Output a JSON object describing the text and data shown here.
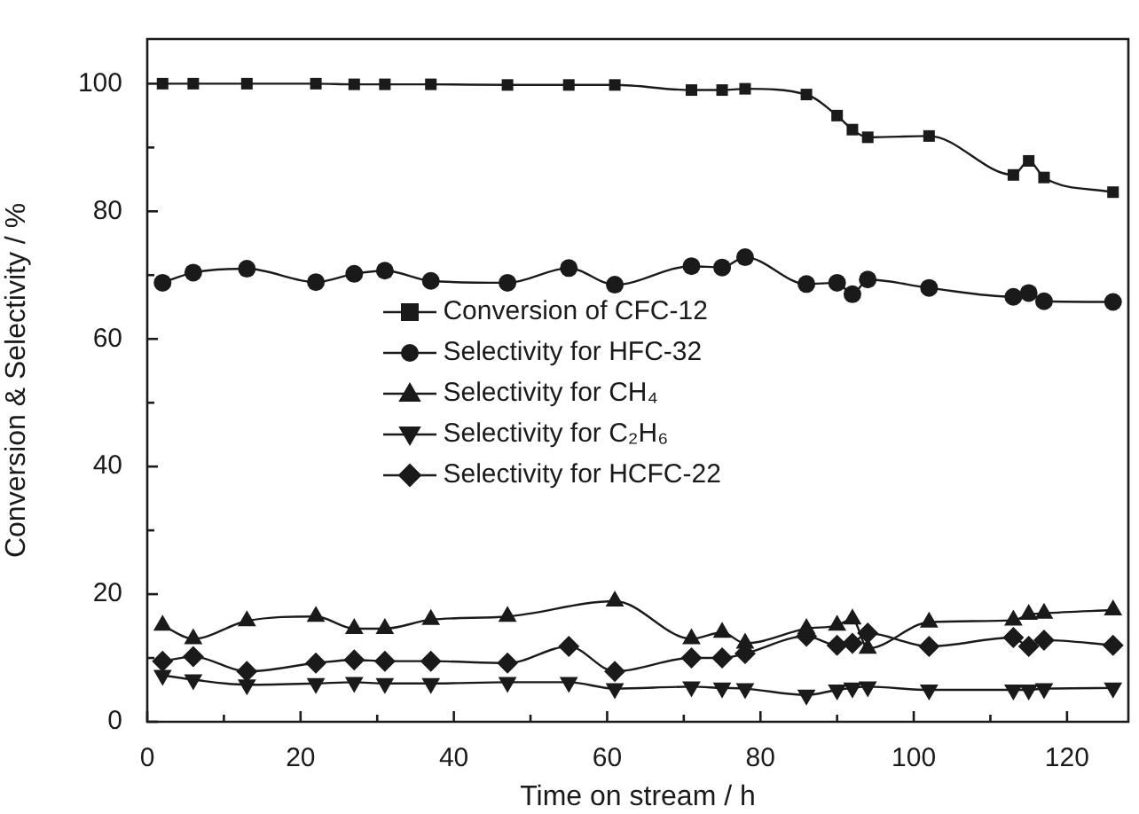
{
  "chart_data": {
    "type": "line",
    "xlabel": "Time on stream / h",
    "ylabel": "Conversion & Selectivity / %",
    "xlim": [
      0,
      128
    ],
    "ylim": [
      0,
      107
    ],
    "xticks": [
      0,
      {
        "value": 10,
        "label": null
      },
      20,
      {
        "value": 30,
        "label": null
      },
      40,
      {
        "value": 50,
        "label": null
      },
      60,
      {
        "value": 70,
        "label": null
      },
      80,
      {
        "value": 90,
        "label": null
      },
      100,
      {
        "value": 110,
        "label": null
      },
      120
    ],
    "yticks": [
      0,
      {
        "value": 10,
        "label": null
      },
      20,
      {
        "value": 30,
        "label": null
      },
      40,
      {
        "value": 50,
        "label": null
      },
      60,
      {
        "value": 70,
        "label": null
      },
      80,
      {
        "value": 90,
        "label": null
      },
      100
    ],
    "grid": false,
    "legend": "center",
    "line_style": "solid",
    "series": [
      {
        "name": "Conversion of CFC-12",
        "color": "#1a1a1a",
        "marker": "square",
        "x": [
          2,
          6,
          13,
          22,
          27,
          31,
          37,
          47,
          55,
          61,
          71,
          75,
          78,
          86,
          90,
          92,
          94,
          102,
          113,
          115,
          117,
          126
        ],
        "values": [
          100,
          100,
          100,
          100,
          99.9,
          99.9,
          99.9,
          99.8,
          99.8,
          99.8,
          99,
          99,
          99.2,
          98.3,
          95,
          92.8,
          91.6,
          91.8,
          85.7,
          87.9,
          85.3,
          83
        ]
      },
      {
        "name": "Selectivity for HFC-32",
        "color": "#1a1a1a",
        "marker": "circle",
        "x": [
          2,
          6,
          13,
          22,
          27,
          31,
          37,
          47,
          55,
          61,
          71,
          75,
          78,
          86,
          90,
          92,
          94,
          102,
          113,
          115,
          117,
          126
        ],
        "values": [
          68.8,
          70.4,
          71,
          68.9,
          70.2,
          70.7,
          69.1,
          68.8,
          71.1,
          68.5,
          71.4,
          71.2,
          72.8,
          68.6,
          68.8,
          67,
          69.3,
          68,
          66.6,
          67.2,
          65.9,
          65.8
        ]
      },
      {
        "name": "Selectivity for CH₄",
        "color": "#1a1a1a",
        "marker": "triangle",
        "x": [
          2,
          6,
          13,
          22,
          27,
          31,
          37,
          47,
          61,
          71,
          75,
          78,
          86,
          90,
          92,
          94,
          102,
          113,
          115,
          117,
          126
        ],
        "values": [
          15.1,
          13,
          15.8,
          16.5,
          14.6,
          14.6,
          16,
          16.5,
          18.9,
          13,
          14,
          12.3,
          14.6,
          15.1,
          16.1,
          11.5,
          15.6,
          15.9,
          16.8,
          17,
          17.5
        ]
      },
      {
        "name": "Selectivity for C₂H₆",
        "color": "#1a1a1a",
        "marker": "triangle-down",
        "x": [
          2,
          6,
          13,
          22,
          27,
          31,
          37,
          47,
          55,
          61,
          71,
          75,
          78,
          86,
          90,
          92,
          94,
          102,
          113,
          115,
          117,
          126
        ],
        "values": [
          7.3,
          6.6,
          5.8,
          6,
          6.2,
          6,
          6,
          6.2,
          6.2,
          5.2,
          5.5,
          5.3,
          5.2,
          4.2,
          5,
          5.3,
          5.5,
          5,
          5,
          5,
          5.2,
          5.3
        ]
      },
      {
        "name": "Selectivity for HCFC-22",
        "color": "#1a1a1a",
        "marker": "diamond",
        "x": [
          2,
          6,
          13,
          22,
          27,
          31,
          37,
          47,
          55,
          61,
          71,
          75,
          78,
          86,
          90,
          92,
          94,
          102,
          113,
          115,
          117,
          126
        ],
        "values": [
          9.5,
          10.2,
          7.9,
          9.2,
          9.7,
          9.5,
          9.5,
          9.2,
          11.8,
          7.9,
          10,
          10,
          10.7,
          13.4,
          12,
          12.3,
          13.9,
          11.8,
          13.2,
          11.8,
          12.8,
          12
        ]
      }
    ]
  }
}
